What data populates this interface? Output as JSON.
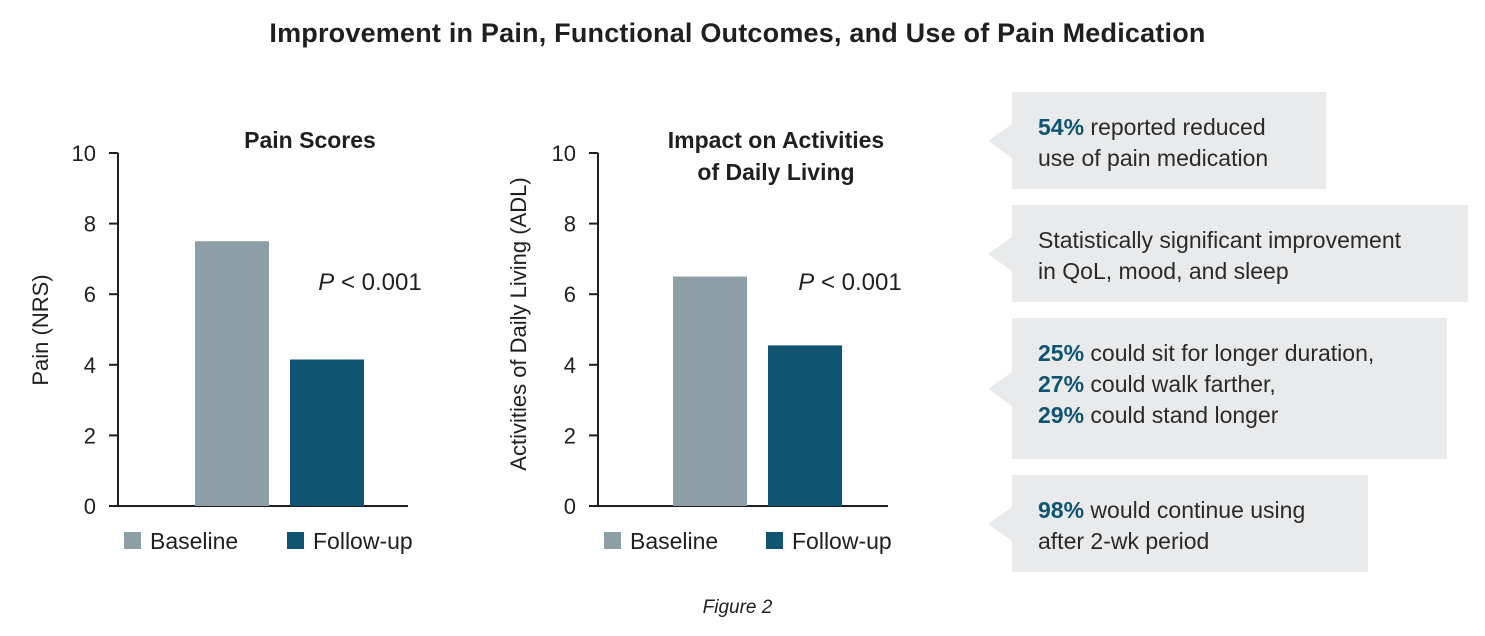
{
  "title": "Improvement in Pain, Functional Outcomes, and Use of Pain Medication",
  "caption": "Figure 2",
  "colors": {
    "baseline": "#8e9ea6",
    "followup": "#0f5470",
    "callout_bg": "#e8eaeb",
    "accent": "#0f5470"
  },
  "chart_data": [
    {
      "type": "bar",
      "title": "Pain Scores",
      "ylabel": "Pain (NRS)",
      "xlabel": "",
      "ylim": [
        0,
        10
      ],
      "yticks": [
        "0",
        "2",
        "4",
        "6",
        "8",
        "10"
      ],
      "categories": [
        "Baseline",
        "Follow-up"
      ],
      "values": [
        7.5,
        4.15
      ],
      "annotation_prefix": "P",
      "annotation_rest": " < 0.001",
      "legend": [
        "Baseline",
        "Follow-up"
      ]
    },
    {
      "type": "bar",
      "title_lines": [
        "Impact on Activities",
        "of Daily Living"
      ],
      "ylabel": "Activities of Daily Living (ADL)",
      "xlabel": "",
      "ylim": [
        0,
        10
      ],
      "yticks": [
        "0",
        "2",
        "4",
        "6",
        "8",
        "10"
      ],
      "categories": [
        "Baseline",
        "Follow-up"
      ],
      "values": [
        6.5,
        4.55
      ],
      "annotation_prefix": "P",
      "annotation_rest": " < 0.001",
      "legend": [
        "Baseline",
        "Follow-up"
      ]
    }
  ],
  "callouts": [
    {
      "pct": "54%",
      "text": " reported reduced",
      "text2": "use of pain medication"
    },
    {
      "line1": "Statistically significant improvement",
      "line2": "in QoL, mood, and sleep"
    },
    {
      "items": [
        {
          "pct": "25%",
          "text": " could sit for longer duration,"
        },
        {
          "pct": "27%",
          "text": " could walk farther,"
        },
        {
          "pct": "29%",
          "text": " could stand longer"
        }
      ]
    },
    {
      "pct": "98%",
      "text": " would continue using",
      "text2": "after 2-wk period"
    }
  ]
}
